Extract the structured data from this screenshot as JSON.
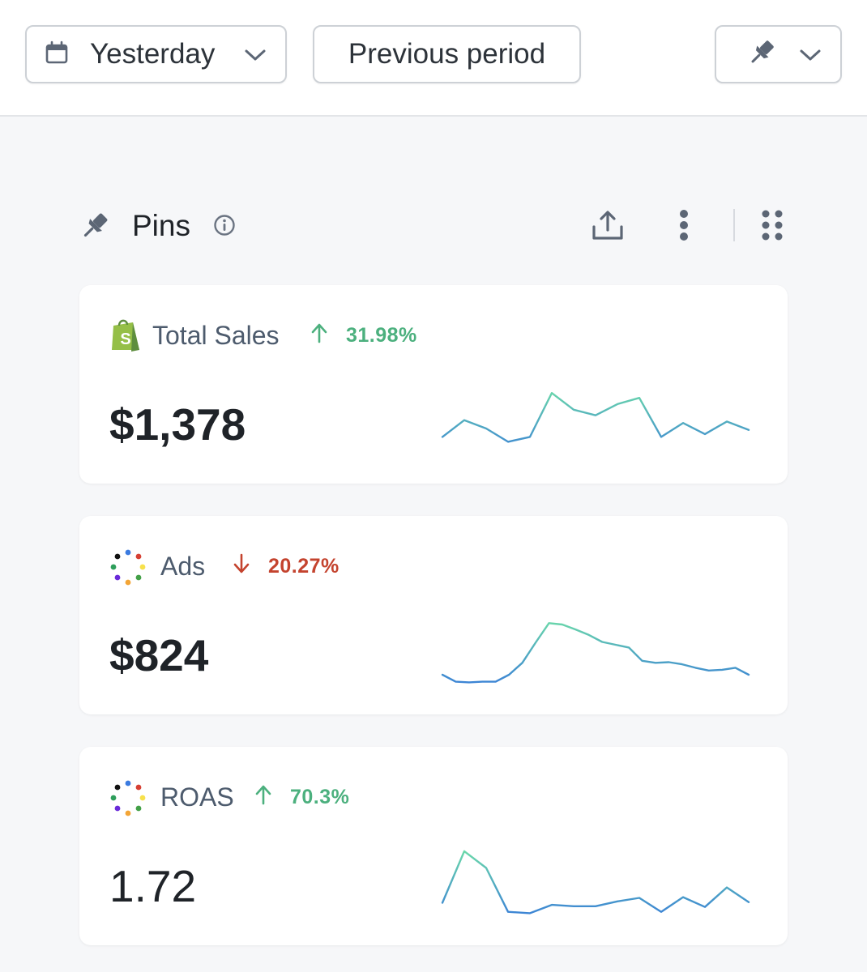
{
  "toolbar": {
    "date_range_label": "Yesterday",
    "compare_label": "Previous period"
  },
  "section": {
    "title": "Pins"
  },
  "cards": [
    {
      "name": "Total Sales",
      "source_icon": "shopify-icon",
      "delta": "31.98%",
      "direction": "up",
      "value": "$1,378",
      "spark": [
        0.24,
        0.48,
        0.36,
        0.17,
        0.24,
        0.87,
        0.63,
        0.55,
        0.71,
        0.8,
        0.24,
        0.44,
        0.28,
        0.46,
        0.34
      ]
    },
    {
      "name": "Ads",
      "source_icon": "dots-logo-icon",
      "delta": "20.27%",
      "direction": "down",
      "value": "$824",
      "spark": [
        0.14,
        0.04,
        0.03,
        0.04,
        0.04,
        0.14,
        0.31,
        0.6,
        0.88,
        0.86,
        0.79,
        0.71,
        0.61,
        0.57,
        0.53,
        0.34,
        0.31,
        0.32,
        0.29,
        0.24,
        0.2,
        0.21,
        0.24,
        0.14
      ]
    },
    {
      "name": "ROAS",
      "source_icon": "dots-logo-icon",
      "delta": "70.3%",
      "direction": "up",
      "value": "1.72",
      "spark": [
        0.18,
        0.92,
        0.68,
        0.05,
        0.03,
        0.15,
        0.13,
        0.13,
        0.2,
        0.25,
        0.05,
        0.26,
        0.12,
        0.4,
        0.19
      ]
    }
  ],
  "colors": {
    "up": "#4cb07e",
    "down": "#c4432e",
    "spark_high": "#6fe0a6",
    "spark_low": "#3b82d6"
  }
}
